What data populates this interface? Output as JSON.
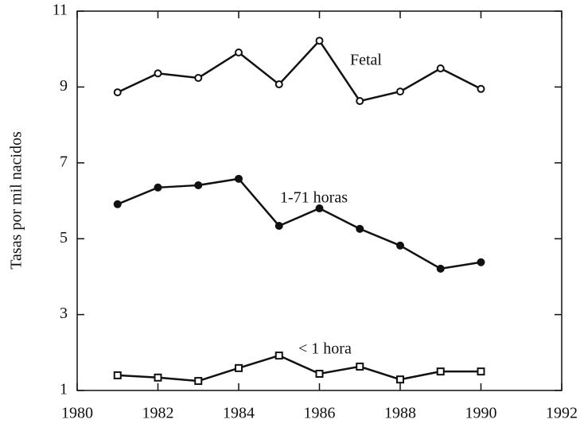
{
  "chart_data": {
    "type": "line",
    "y_label": "Tasas por mil nacidos",
    "x": [
      1981,
      1982,
      1983,
      1984,
      1985,
      1986,
      1987,
      1988,
      1989,
      1990
    ],
    "series": [
      {
        "name": "Fetal",
        "color": "#111111",
        "marker": "circle-open",
        "values": [
          8.86,
          9.36,
          9.24,
          9.91,
          9.07,
          10.22,
          8.63,
          8.88,
          9.49,
          8.95
        ]
      },
      {
        "name": "1-71 horas",
        "color": "#111111",
        "marker": "circle-filled",
        "values": [
          5.91,
          6.35,
          6.41,
          6.58,
          5.34,
          5.8,
          5.26,
          4.82,
          4.21,
          4.38
        ]
      },
      {
        "name": "< 1 hora",
        "color": "#111111",
        "marker": "square-open",
        "values": [
          1.4,
          1.34,
          1.25,
          1.59,
          1.92,
          1.44,
          1.63,
          1.29,
          1.5,
          1.5
        ]
      }
    ],
    "xlim": [
      1980,
      1992
    ],
    "xticks": [
      1980,
      1982,
      1984,
      1986,
      1988,
      1990,
      1992
    ],
    "ylim": [
      1,
      11
    ],
    "yticks": [
      1,
      3,
      5,
      7,
      9,
      11
    ]
  }
}
